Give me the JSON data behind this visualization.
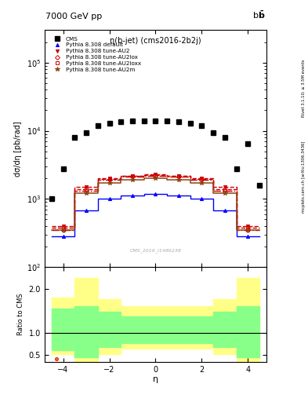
{
  "title_left": "7000 GeV pp",
  "plot_title": "η(b-jet) (cms2016-2b2j)",
  "watermark": "CMS_2016_I1486238",
  "ylabel_main": "dσ/dη [pb/rad]",
  "ylabel_ratio": "Ratio to CMS",
  "xlabel": "η",
  "right_label_top": "Rivet 3.1.10; ≥ 3.5M events",
  "right_label_bottom": "mcplots.cern.ch [arXiv:1306.3436]",
  "cms_eta": [
    -4.5,
    -4.0,
    -3.5,
    -3.0,
    -2.5,
    -2.0,
    -1.5,
    -1.0,
    -0.5,
    0.0,
    0.5,
    1.0,
    1.5,
    2.0,
    2.5,
    3.0,
    3.5,
    4.0,
    4.5
  ],
  "cms_values": [
    1000,
    2800,
    8000,
    9500,
    12000,
    13000,
    13500,
    14000,
    14000,
    14000,
    14000,
    13500,
    13000,
    12000,
    9500,
    8000,
    2800,
    6500,
    1600
  ],
  "eta_bin_edges": [
    -4.5,
    -3.5,
    -2.5,
    -1.5,
    -0.5,
    0.5,
    1.5,
    2.5,
    3.5,
    4.5
  ],
  "default_values": [
    280,
    680,
    1020,
    1120,
    1170,
    1120,
    1020,
    680,
    280
  ],
  "default_color": "#0000ff",
  "au2_values": [
    400,
    1500,
    2000,
    2200,
    2300,
    2200,
    2000,
    1500,
    400
  ],
  "au2_color": "#cc0000",
  "au2lox_values": [
    350,
    1300,
    1900,
    2100,
    2200,
    2100,
    1900,
    1300,
    350
  ],
  "au2lox_color": "#cc0000",
  "au2loxx_values": [
    380,
    1400,
    1950,
    2150,
    2250,
    2150,
    1950,
    1400,
    380
  ],
  "au2loxx_color": "#cc0000",
  "au2m_values": [
    350,
    1200,
    1700,
    1900,
    2000,
    1900,
    1700,
    1200,
    350
  ],
  "au2m_color": "#8B4513",
  "xlim": [
    -4.8,
    4.8
  ],
  "ylim_main_lo": 100,
  "ylim_main_hi": 300000,
  "ylim_ratio_lo": 0.35,
  "ylim_ratio_hi": 2.5,
  "ratio_bin_edges": [
    -4.5,
    -3.5,
    -2.5,
    -1.5,
    1.5,
    2.5,
    3.5,
    4.5
  ],
  "ratio_green_lo": [
    0.62,
    0.45,
    0.68,
    0.78,
    0.78,
    0.68,
    0.45,
    0.62
  ],
  "ratio_green_hi": [
    1.55,
    1.62,
    1.48,
    1.38,
    1.38,
    1.48,
    1.62,
    1.55
  ],
  "ratio_yellow_lo": [
    0.52,
    0.36,
    0.52,
    0.65,
    0.65,
    0.52,
    0.36,
    0.52
  ],
  "ratio_yellow_hi": [
    1.8,
    2.25,
    1.78,
    1.62,
    1.62,
    1.78,
    2.25,
    1.8
  ]
}
